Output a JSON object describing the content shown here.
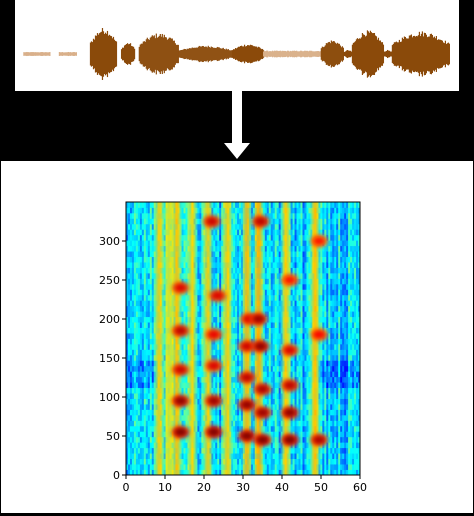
{
  "colors": {
    "background": "#000000",
    "panel": "#ffffff",
    "waveform": "#8b4a0a",
    "waveform_faint": "#d9b08a",
    "arrow": "#ffffff"
  },
  "icons": {
    "flow_arrow": "down-arrow-icon"
  },
  "waveform": {
    "segments": [
      {
        "x0": 0.02,
        "x1": 0.08,
        "amp": 0.06,
        "faint": true
      },
      {
        "x0": 0.1,
        "x1": 0.14,
        "amp": 0.06,
        "faint": true
      },
      {
        "x0": 0.17,
        "x1": 0.23,
        "amp": 0.78
      },
      {
        "x0": 0.24,
        "x1": 0.27,
        "amp": 0.35
      },
      {
        "x0": 0.28,
        "x1": 0.37,
        "amp": 0.62
      },
      {
        "x0": 0.37,
        "x1": 0.49,
        "amp": 0.25
      },
      {
        "x0": 0.49,
        "x1": 0.56,
        "amp": 0.3
      },
      {
        "x0": 0.56,
        "x1": 0.69,
        "amp": 0.1,
        "faint": true
      },
      {
        "x0": 0.69,
        "x1": 0.74,
        "amp": 0.42
      },
      {
        "x0": 0.74,
        "x1": 0.76,
        "amp": 0.12
      },
      {
        "x0": 0.76,
        "x1": 0.83,
        "amp": 0.7
      },
      {
        "x0": 0.83,
        "x1": 0.85,
        "amp": 0.12
      },
      {
        "x0": 0.85,
        "x1": 0.98,
        "amp": 0.68
      }
    ]
  },
  "chart_data": {
    "type": "heatmap",
    "title": "",
    "xlabel": "",
    "ylabel": "",
    "xlim": [
      0,
      60
    ],
    "ylim": [
      0,
      350
    ],
    "x_ticks": [
      0,
      10,
      20,
      30,
      40,
      50,
      60
    ],
    "y_ticks": [
      0,
      50,
      100,
      150,
      200,
      250,
      300
    ],
    "colormap": "jet",
    "vertical_bands": [
      {
        "x": 8.5,
        "intensity": 0.55
      },
      {
        "x": 11.0,
        "intensity": 0.45
      },
      {
        "x": 13.0,
        "intensity": 0.6
      },
      {
        "x": 17.0,
        "intensity": 0.5
      },
      {
        "x": 21.0,
        "intensity": 0.55
      },
      {
        "x": 26.0,
        "intensity": 0.55
      },
      {
        "x": 31.0,
        "intensity": 0.65
      },
      {
        "x": 34.0,
        "intensity": 0.7
      },
      {
        "x": 41.0,
        "intensity": 0.55
      },
      {
        "x": 48.5,
        "intensity": 0.6
      }
    ],
    "hot_spots": [
      {
        "x": 14.0,
        "y": 55,
        "v": 1.0
      },
      {
        "x": 14.0,
        "y": 95,
        "v": 0.95
      },
      {
        "x": 14.0,
        "y": 135,
        "v": 0.75
      },
      {
        "x": 14.0,
        "y": 185,
        "v": 0.8
      },
      {
        "x": 14.0,
        "y": 240,
        "v": 0.7
      },
      {
        "x": 22.5,
        "y": 55,
        "v": 1.0
      },
      {
        "x": 22.5,
        "y": 95,
        "v": 0.9
      },
      {
        "x": 22.5,
        "y": 140,
        "v": 0.7
      },
      {
        "x": 22.5,
        "y": 180,
        "v": 0.65
      },
      {
        "x": 23.5,
        "y": 230,
        "v": 0.7
      },
      {
        "x": 22.0,
        "y": 325,
        "v": 0.75
      },
      {
        "x": 31.0,
        "y": 50,
        "v": 1.0
      },
      {
        "x": 31.0,
        "y": 90,
        "v": 0.95
      },
      {
        "x": 31.0,
        "y": 125,
        "v": 0.8
      },
      {
        "x": 31.0,
        "y": 165,
        "v": 0.75
      },
      {
        "x": 31.5,
        "y": 200,
        "v": 0.7
      },
      {
        "x": 35.0,
        "y": 45,
        "v": 1.0
      },
      {
        "x": 35.0,
        "y": 80,
        "v": 0.9
      },
      {
        "x": 35.0,
        "y": 110,
        "v": 0.85
      },
      {
        "x": 34.5,
        "y": 165,
        "v": 0.95
      },
      {
        "x": 34.0,
        "y": 200,
        "v": 0.9
      },
      {
        "x": 34.5,
        "y": 325,
        "v": 0.8
      },
      {
        "x": 42.0,
        "y": 45,
        "v": 1.0
      },
      {
        "x": 42.0,
        "y": 80,
        "v": 0.95
      },
      {
        "x": 42.0,
        "y": 115,
        "v": 0.8
      },
      {
        "x": 42.0,
        "y": 160,
        "v": 0.7
      },
      {
        "x": 42.0,
        "y": 250,
        "v": 0.55
      },
      {
        "x": 49.5,
        "y": 45,
        "v": 0.85
      },
      {
        "x": 49.5,
        "y": 180,
        "v": 0.6
      },
      {
        "x": 49.5,
        "y": 300,
        "v": 0.55
      }
    ]
  }
}
